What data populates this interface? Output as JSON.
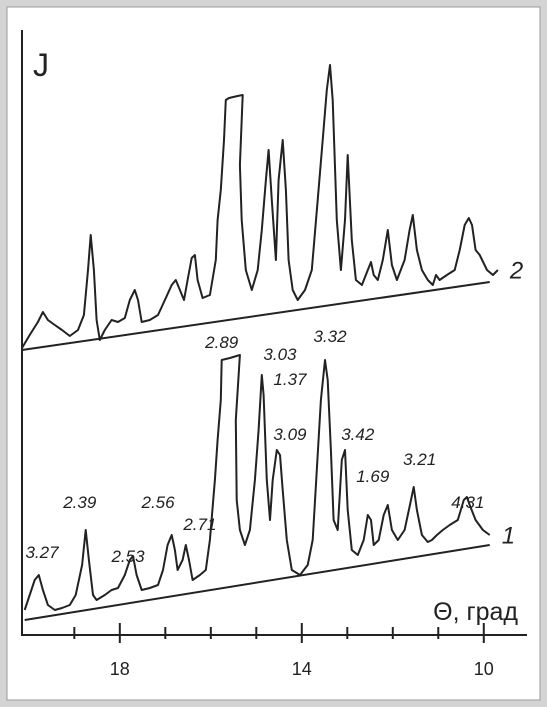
{
  "chart_data": {
    "type": "line",
    "y_label": "J",
    "x_label": "Θ, град",
    "xlim": [
      20.15,
      9.05
    ],
    "ylim": [
      0,
      605
    ],
    "xticks": [
      18,
      14,
      10
    ],
    "xminor": [
      19,
      17,
      16,
      15,
      13,
      12,
      11
    ],
    "color": "#222222",
    "series": [
      {
        "name": "2",
        "x": [
          20.15,
          19.98,
          19.8,
          19.69,
          19.58,
          19.43,
          19.27,
          19.1,
          18.92,
          18.79,
          18.7,
          18.64,
          18.57,
          18.51,
          18.44,
          18.33,
          18.18,
          18.04,
          17.89,
          17.78,
          17.67,
          17.6,
          17.52,
          17.34,
          17.16,
          17.01,
          16.86,
          16.77,
          16.68,
          16.59,
          16.51,
          16.42,
          16.35,
          16.29,
          16.18,
          16.02,
          15.89,
          15.85,
          15.78,
          15.71,
          15.67,
          15.6,
          15.41,
          15.3,
          15.36,
          15.32,
          15.23,
          15.1,
          14.97,
          14.88,
          14.79,
          14.73,
          14.66,
          14.57,
          14.51,
          14.42,
          14.35,
          14.29,
          14.2,
          14.09,
          13.93,
          13.78,
          13.65,
          13.54,
          13.45,
          13.38,
          13.32,
          13.23,
          13.14,
          13.05,
          12.99,
          12.9,
          12.81,
          12.68,
          12.55,
          12.48,
          12.42,
          12.33,
          12.22,
          12.11,
          12.02,
          11.91,
          11.74,
          11.63,
          11.56,
          11.47,
          11.36,
          11.23,
          11.12,
          11.05,
          10.97,
          10.81,
          10.64,
          10.53,
          10.42,
          10.33,
          10.26,
          10.18,
          10.09,
          9.93,
          9.8,
          9.69
        ],
        "values": [
          287,
          300,
          313,
          323,
          315,
          310,
          305,
          299,
          305,
          320,
          365,
          400,
          365,
          315,
          295,
          305,
          315,
          313,
          317,
          335,
          345,
          335,
          313,
          315,
          320,
          335,
          350,
          355,
          345,
          335,
          355,
          377,
          380,
          355,
          337,
          340,
          375,
          415,
          445,
          495,
          535,
          537,
          539,
          540,
          470,
          415,
          365,
          345,
          365,
          405,
          455,
          485,
          435,
          375,
          455,
          495,
          445,
          375,
          345,
          335,
          345,
          365,
          435,
          495,
          545,
          570,
          535,
          415,
          365,
          415,
          480,
          395,
          355,
          350,
          365,
          373,
          360,
          355,
          375,
          405,
          370,
          355,
          375,
          405,
          420,
          385,
          365,
          355,
          350,
          360,
          355,
          360,
          365,
          385,
          410,
          417,
          410,
          385,
          380,
          365,
          360,
          365
        ],
        "baseline": {
          "x": [
            20.15,
            9.87
          ],
          "values": [
            285,
            353
          ]
        }
      },
      {
        "name": "1",
        "x": [
          20.09,
          19.98,
          19.87,
          19.78,
          19.69,
          19.58,
          19.43,
          19.27,
          19.1,
          18.97,
          18.83,
          18.75,
          18.68,
          18.59,
          18.51,
          18.33,
          18.18,
          18.04,
          17.89,
          17.78,
          17.71,
          17.63,
          17.52,
          17.34,
          17.16,
          17.05,
          16.95,
          16.86,
          16.79,
          16.73,
          16.62,
          16.55,
          16.48,
          16.4,
          16.24,
          16.11,
          16.02,
          15.91,
          15.85,
          15.78,
          15.76,
          15.58,
          15.36,
          15.45,
          15.43,
          15.36,
          15.25,
          15.14,
          15.03,
          14.95,
          14.88,
          14.84,
          14.77,
          14.7,
          14.64,
          14.55,
          14.48,
          14.42,
          14.33,
          14.22,
          14.04,
          13.87,
          13.76,
          13.67,
          13.58,
          13.49,
          13.43,
          13.36,
          13.3,
          13.21,
          13.12,
          13.05,
          12.99,
          12.9,
          12.77,
          12.64,
          12.55,
          12.48,
          12.42,
          12.31,
          12.2,
          12.11,
          12.02,
          11.89,
          11.74,
          11.6,
          11.54,
          11.47,
          11.36,
          11.23,
          11.14,
          11.03,
          10.9,
          10.75,
          10.57,
          10.44,
          10.37,
          10.31,
          10.18,
          10.02,
          9.87
        ],
        "values": [
          25,
          40,
          55,
          60,
          45,
          30,
          25,
          27,
          30,
          40,
          70,
          105,
          75,
          40,
          35,
          40,
          45,
          47,
          60,
          75,
          79,
          60,
          45,
          47,
          50,
          65,
          90,
          100,
          85,
          65,
          75,
          90,
          75,
          55,
          60,
          65,
          95,
          155,
          195,
          235,
          275,
          277,
          280,
          215,
          135,
          105,
          90,
          105,
          155,
          205,
          260,
          240,
          155,
          115,
          155,
          185,
          180,
          145,
          95,
          65,
          60,
          70,
          95,
          165,
          235,
          275,
          255,
          185,
          115,
          105,
          175,
          185,
          125,
          85,
          80,
          95,
          120,
          115,
          90,
          95,
          120,
          130,
          105,
          95,
          105,
          135,
          148,
          125,
          100,
          93,
          95,
          100,
          105,
          110,
          115,
          135,
          138,
          130,
          115,
          105,
          100
        ],
        "baseline": {
          "x": [
            20.09,
            9.87
          ],
          "values": [
            15,
            90
          ]
        }
      }
    ],
    "annotations": [
      {
        "text": "3.27",
        "x": 19.71,
        "y": 77
      },
      {
        "text": "2.39",
        "x": 18.88,
        "y": 127
      },
      {
        "text": "2.53",
        "x": 17.82,
        "y": 73
      },
      {
        "text": "2.56",
        "x": 17.16,
        "y": 127
      },
      {
        "text": "2.71",
        "x": 16.24,
        "y": 105
      },
      {
        "text": "2.89",
        "x": 15.76,
        "y": 287
      },
      {
        "text": "3.03",
        "x": 14.48,
        "y": 275
      },
      {
        "text": "1.37",
        "x": 14.26,
        "y": 250
      },
      {
        "text": "3.09",
        "x": 14.26,
        "y": 195
      },
      {
        "text": "3.32",
        "x": 13.38,
        "y": 293
      },
      {
        "text": "3.42",
        "x": 12.77,
        "y": 195
      },
      {
        "text": "1.69",
        "x": 12.44,
        "y": 153
      },
      {
        "text": "3.21",
        "x": 11.41,
        "y": 170
      },
      {
        "text": "4.31",
        "x": 10.35,
        "y": 127
      }
    ]
  }
}
